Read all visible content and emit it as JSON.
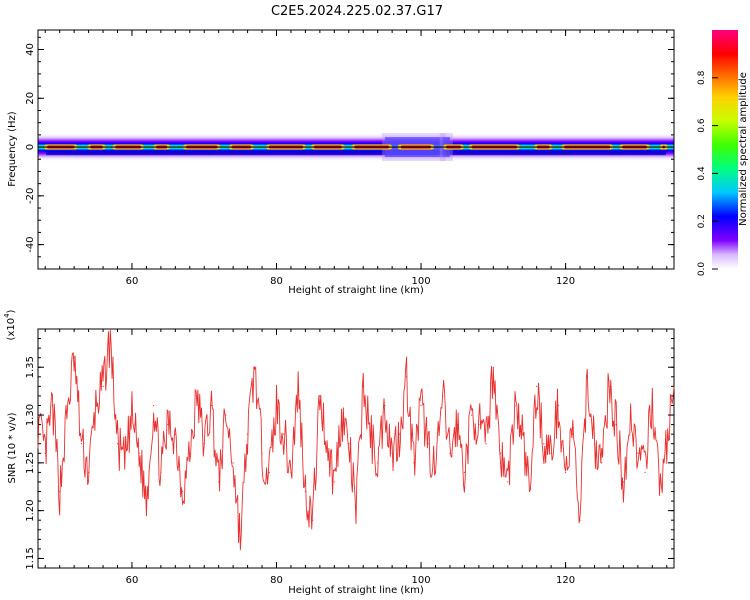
{
  "title": "C2E5.2024.225.02.37.G17",
  "colorbar": {
    "label": "Normalized spectral amplitude",
    "ticks": [
      "0.0",
      "0.2",
      "0.4",
      "0.6",
      "0.8"
    ]
  },
  "chart_data": [
    {
      "type": "heatmap",
      "xlabel": "Height of straight line (km)",
      "ylabel": "Frequency (Hz)",
      "xlim": [
        47,
        135
      ],
      "ylim": [
        -50,
        48
      ],
      "xticks": [
        "60",
        "80",
        "100",
        "120"
      ],
      "yticks": [
        "-40",
        "-20",
        "0",
        "20",
        "40"
      ],
      "colorscale": [
        "#ffffff",
        "#c8a0ff",
        "#8000ff",
        "#0000ff",
        "#00c8ff",
        "#00ff80",
        "#80ff00",
        "#ffff00",
        "#ff8000",
        "#ff0000",
        "#ff0080"
      ],
      "ridge_frequency": 0,
      "band_halfwidth": 2,
      "disturbances": [
        {
          "x_start": 95,
          "x_end": 103
        },
        {
          "x_start": 103,
          "x_end": 104
        }
      ]
    },
    {
      "type": "line",
      "xlabel": "Height of straight line (km)",
      "ylabel": "SNR (10 * v/v)",
      "yscale_label": "(x10",
      "yscale_exp": "4",
      "yscale_close": ")",
      "xlim": [
        47,
        135
      ],
      "ylim": [
        1.14,
        1.39
      ],
      "xticks": [
        "60",
        "80",
        "100",
        "120"
      ],
      "yticks": [
        "1.15",
        "1.20",
        "1.25",
        "1.30",
        "1.35"
      ],
      "series": [
        {
          "color": "#e83030",
          "x": [
            47,
            48,
            49,
            50,
            51,
            52,
            53,
            54,
            55,
            56,
            57,
            58,
            59,
            60,
            61,
            62,
            63,
            64,
            65,
            66,
            67,
            68,
            69,
            70,
            71,
            72,
            73,
            74,
            75,
            76,
            77,
            78,
            79,
            80,
            81,
            82,
            83,
            84,
            85,
            86,
            87,
            88,
            89,
            90,
            91,
            92,
            93,
            94,
            95,
            96,
            97,
            98,
            99,
            100,
            101,
            102,
            103,
            104,
            105,
            106,
            107,
            108,
            109,
            110,
            111,
            112,
            113,
            114,
            115,
            116,
            117,
            118,
            119,
            120,
            121,
            122,
            123,
            124,
            125,
            126,
            127,
            128,
            129,
            130,
            131,
            132,
            133,
            134,
            135
          ],
          "y": [
            1.29,
            1.26,
            1.31,
            1.22,
            1.3,
            1.36,
            1.27,
            1.24,
            1.31,
            1.33,
            1.38,
            1.27,
            1.25,
            1.3,
            1.26,
            1.21,
            1.31,
            1.24,
            1.29,
            1.28,
            1.22,
            1.26,
            1.32,
            1.27,
            1.31,
            1.23,
            1.3,
            1.25,
            1.17,
            1.28,
            1.35,
            1.26,
            1.24,
            1.31,
            1.28,
            1.24,
            1.33,
            1.22,
            1.19,
            1.32,
            1.27,
            1.23,
            1.3,
            1.27,
            1.2,
            1.33,
            1.28,
            1.25,
            1.31,
            1.26,
            1.28,
            1.34,
            1.25,
            1.31,
            1.27,
            1.24,
            1.32,
            1.26,
            1.29,
            1.24,
            1.3,
            1.29,
            1.27,
            1.35,
            1.26,
            1.23,
            1.31,
            1.28,
            1.22,
            1.33,
            1.27,
            1.26,
            1.31,
            1.24,
            1.28,
            1.19,
            1.34,
            1.27,
            1.25,
            1.33,
            1.29,
            1.23,
            1.3,
            1.26,
            1.24,
            1.32,
            1.22,
            1.27,
            1.33
          ]
        }
      ]
    }
  ]
}
